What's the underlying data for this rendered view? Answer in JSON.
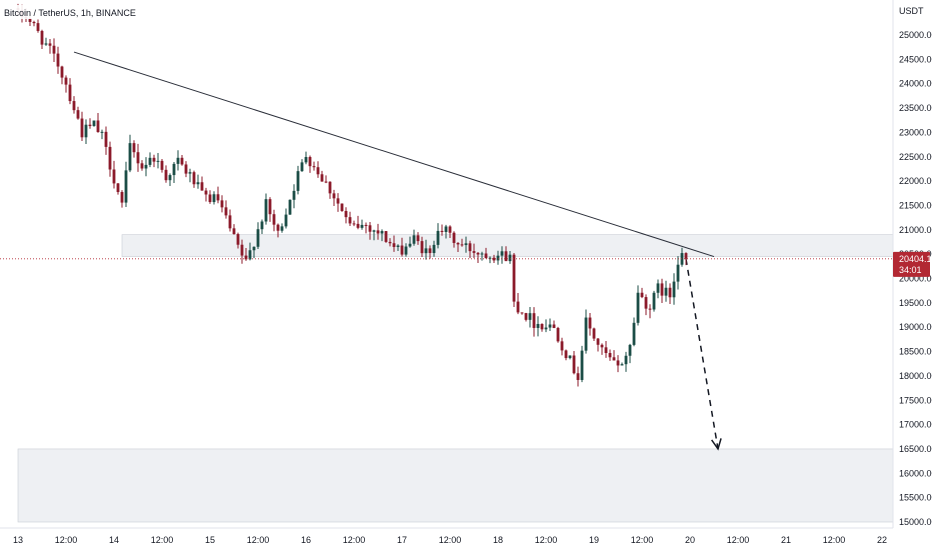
{
  "header": {
    "title": "Bitcoin / TetherUS, 1h, BINANCE"
  },
  "price_axis": {
    "currency": "USDT",
    "current_price": "20404.12",
    "countdown": "34:01"
  },
  "colors": {
    "up": "#1b4d46",
    "down": "#8b1a2a",
    "zone_fill": "#eef0f3",
    "price_line": "#b22833",
    "trendline": "#2a2e39"
  },
  "chart_data": {
    "type": "candlestick",
    "title": "Bitcoin / TetherUS, 1h, BINANCE",
    "ylim": [
      15000,
      25750
    ],
    "y_ticks": [
      15000,
      15500,
      16000,
      16500,
      17000,
      17500,
      18000,
      18500,
      19000,
      19500,
      20000,
      20500,
      21000,
      21500,
      22000,
      22500,
      23000,
      23500,
      24000,
      24500,
      25000
    ],
    "y_tick_labels": [
      "15000.00",
      "15500.00",
      "16000.00",
      "16500.00",
      "17000.00",
      "17500.00",
      "18000.00",
      "18500.00",
      "19000.00",
      "19500.00",
      "20000.00",
      "20500.00",
      "21000.00",
      "21500.00",
      "22000.00",
      "22500.00",
      "23000.00",
      "23500.00",
      "24000.00",
      "24500.00",
      "25000.00"
    ],
    "x_ticks": [
      {
        "label": "13",
        "t": 0
      },
      {
        "label": "12:00",
        "t": 12
      },
      {
        "label": "14",
        "t": 24
      },
      {
        "label": "12:00",
        "t": 36
      },
      {
        "label": "15",
        "t": 48
      },
      {
        "label": "12:00",
        "t": 60
      },
      {
        "label": "16",
        "t": 72
      },
      {
        "label": "12:00",
        "t": 84
      },
      {
        "label": "17",
        "t": 96
      },
      {
        "label": "12:00",
        "t": 108
      },
      {
        "label": "18",
        "t": 120
      },
      {
        "label": "12:00",
        "t": 132
      },
      {
        "label": "19",
        "t": 144
      },
      {
        "label": "12:00",
        "t": 156
      },
      {
        "label": "20",
        "t": 168
      },
      {
        "label": "12:00",
        "t": 180
      },
      {
        "label": "21",
        "t": 192
      },
      {
        "label": "12:00",
        "t": 204
      },
      {
        "label": "22",
        "t": 216
      }
    ],
    "ohlc_keypoints": [
      [
        2,
        25400
      ],
      [
        5,
        25050
      ],
      [
        10,
        24400
      ],
      [
        12,
        24000
      ],
      [
        16,
        23000
      ],
      [
        19,
        23150
      ],
      [
        21,
        22900
      ],
      [
        26,
        21500
      ],
      [
        28,
        22700
      ],
      [
        31,
        22300
      ],
      [
        34,
        22500
      ],
      [
        37,
        22100
      ],
      [
        40,
        22400
      ],
      [
        44,
        22000
      ],
      [
        46,
        21700
      ],
      [
        50,
        21600
      ],
      [
        54,
        20800
      ],
      [
        57,
        20300
      ],
      [
        62,
        21500
      ],
      [
        65,
        20900
      ],
      [
        69,
        21900
      ],
      [
        72,
        22550
      ],
      [
        75,
        22200
      ],
      [
        79,
        21700
      ],
      [
        83,
        21050
      ],
      [
        87,
        21100
      ],
      [
        91,
        20900
      ],
      [
        95,
        20550
      ],
      [
        99,
        20800
      ],
      [
        103,
        20450
      ],
      [
        105,
        21100
      ],
      [
        107,
        20950
      ],
      [
        110,
        20700
      ],
      [
        115,
        20550
      ],
      [
        119,
        20500
      ],
      [
        123,
        20450
      ],
      [
        124,
        19500
      ],
      [
        129,
        19100
      ],
      [
        134,
        19000
      ],
      [
        138,
        18300
      ],
      [
        140,
        18000
      ],
      [
        142,
        19100
      ],
      [
        146,
        18500
      ],
      [
        150,
        18150
      ],
      [
        153,
        18600
      ],
      [
        155,
        19700
      ],
      [
        158,
        19400
      ],
      [
        160,
        19800
      ],
      [
        163,
        19650
      ],
      [
        165,
        20400
      ],
      [
        166,
        20600
      ],
      [
        167,
        20404
      ]
    ],
    "zones": [
      {
        "name": "resistance-zone",
        "from": 20450,
        "to": 20900,
        "t_start": 26
      },
      {
        "name": "target-zone",
        "from": 15000,
        "to": 16500,
        "t_start": 0
      }
    ],
    "trendline": {
      "t1": 14,
      "p1": 24650,
      "t2": 174,
      "p2": 20450
    },
    "projection": {
      "t1": 167,
      "p1": 20400,
      "t2": 175,
      "p2": 16500
    }
  }
}
